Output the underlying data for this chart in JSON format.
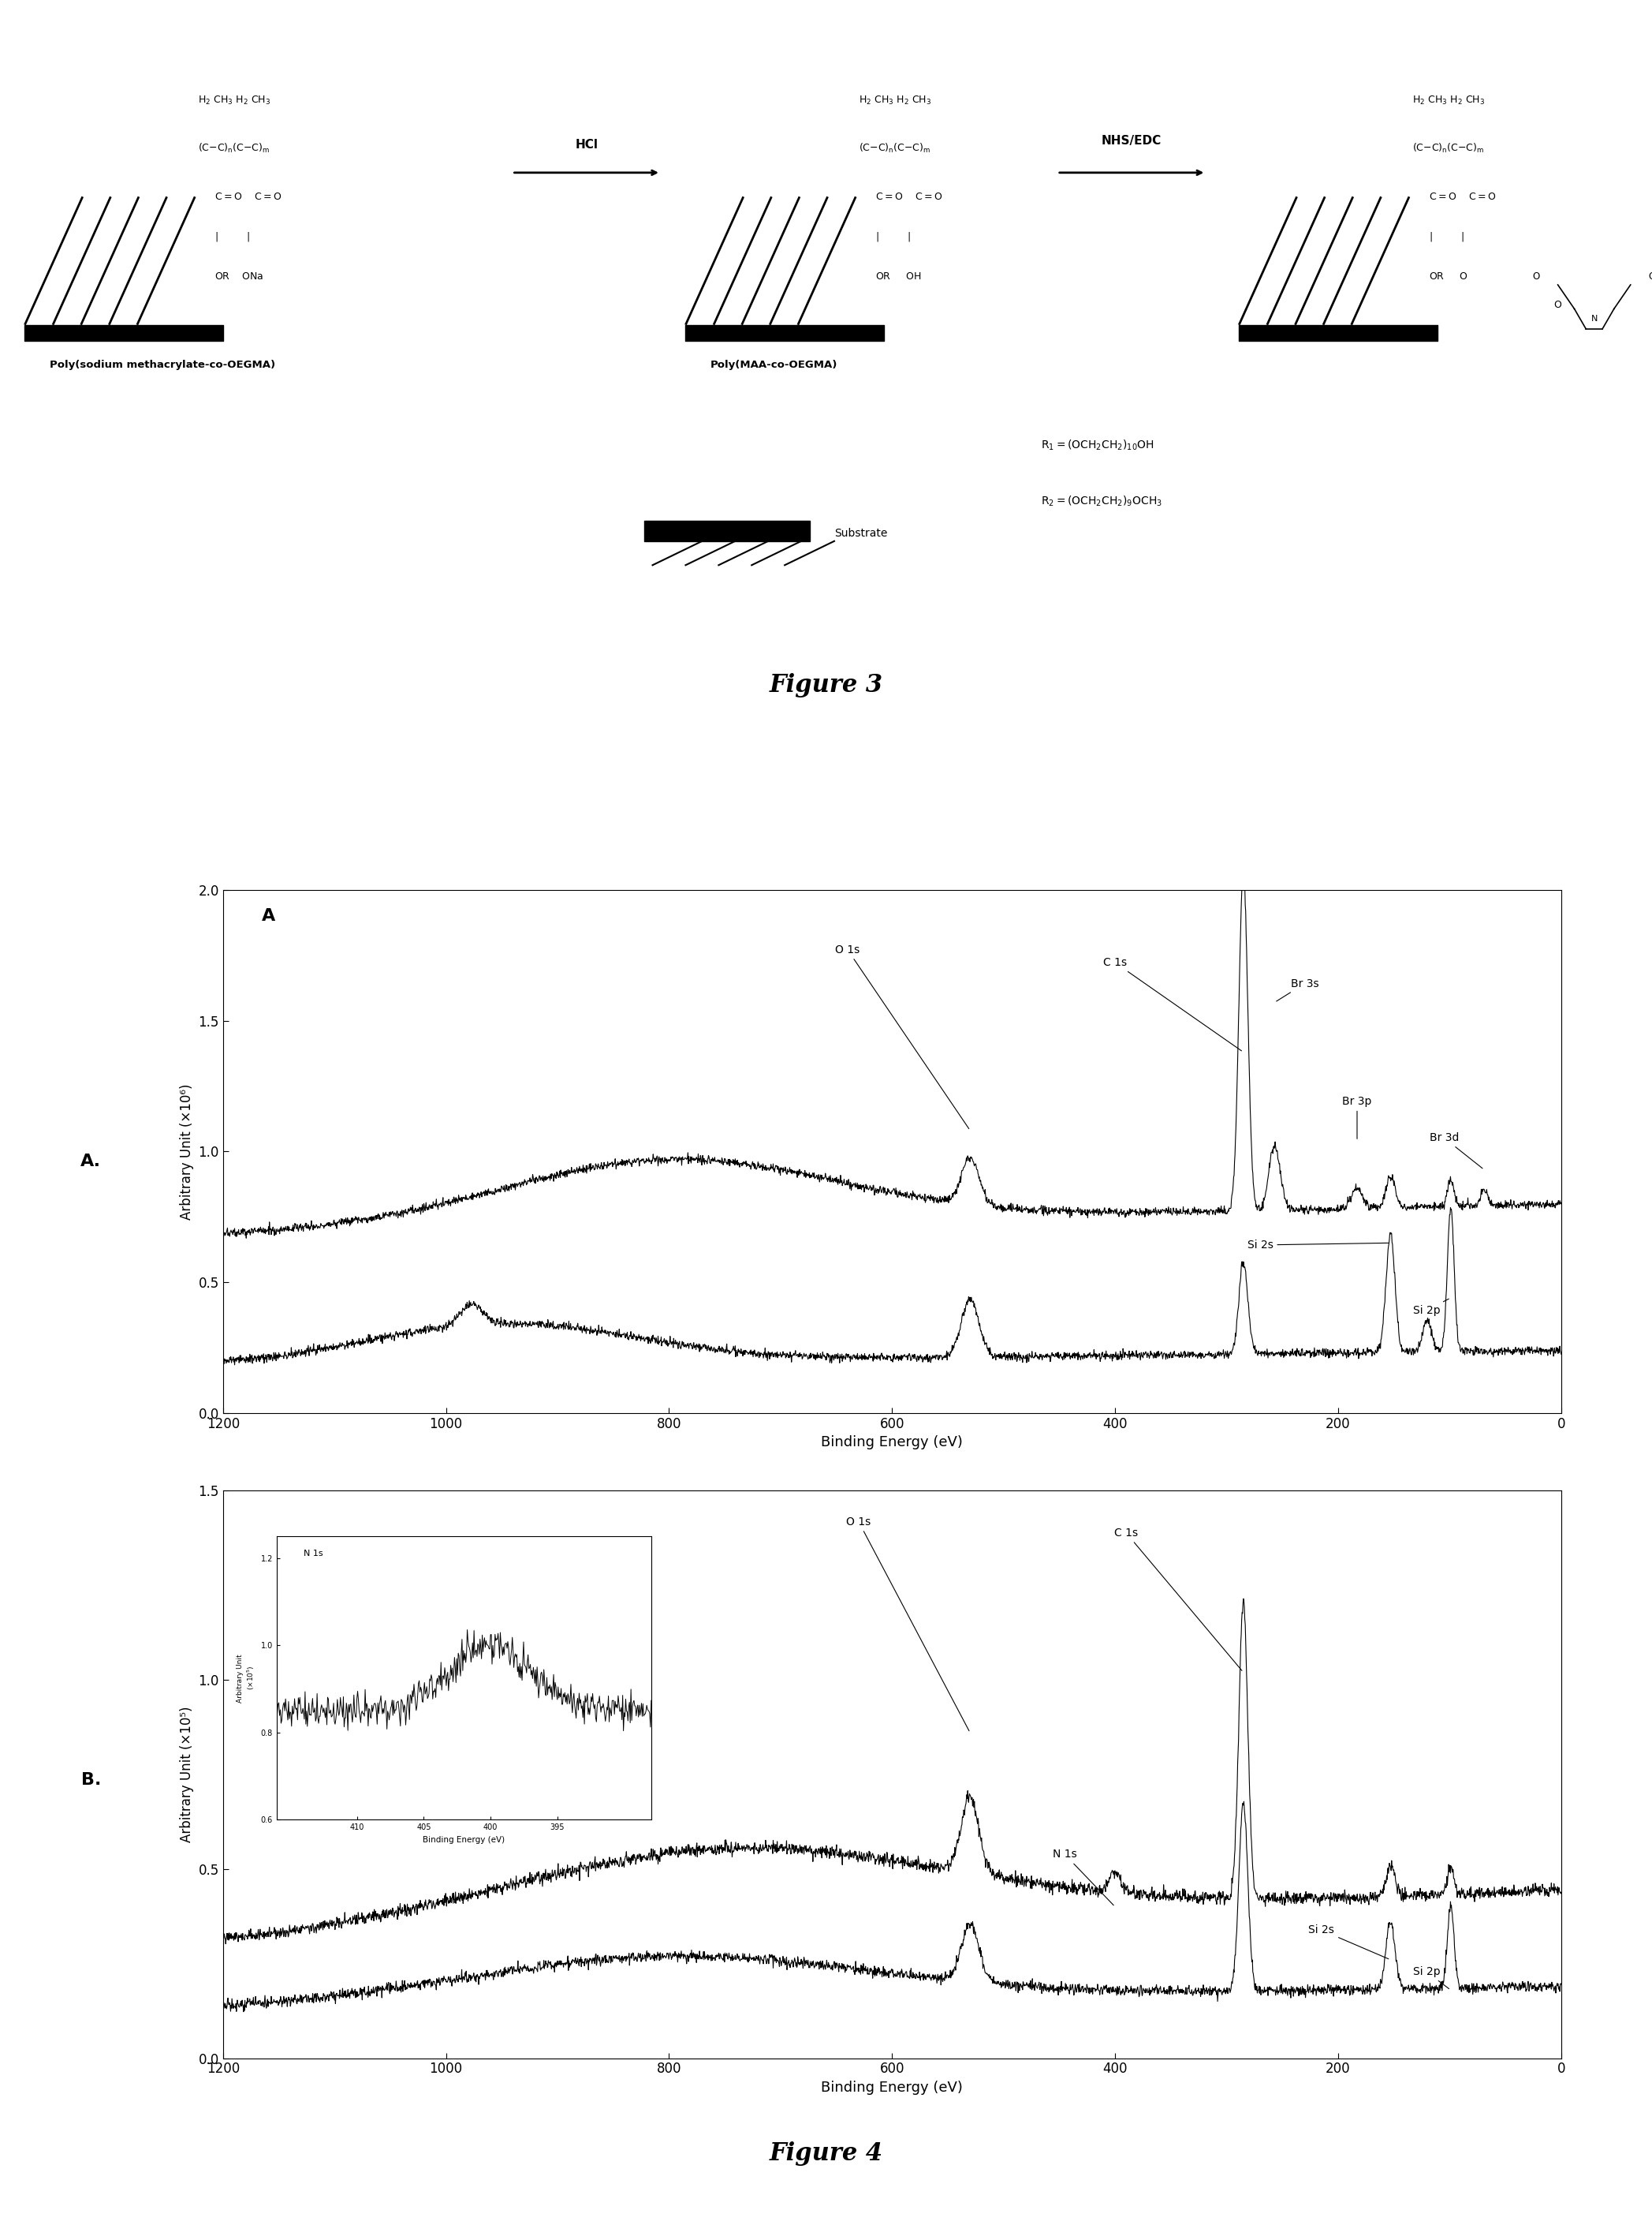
{
  "fig3_title": "Figure 3",
  "fig4_title": "Figure 4",
  "ylabel_A": "Arbitrary Unit (×10⁶)",
  "ylabel_B": "Arbitrary Unit (×10⁵)",
  "xlabel": "Binding Energy (eV)",
  "xlim": [
    1200,
    0
  ],
  "ylim_A": [
    0.0,
    2.0
  ],
  "ylim_B": [
    0.0,
    1.5
  ],
  "yticks_A": [
    0.0,
    0.5,
    1.0,
    1.5,
    2.0
  ],
  "yticks_B": [
    0.0,
    0.5,
    1.0,
    1.5
  ],
  "xticks": [
    0,
    200,
    400,
    600,
    800,
    1000,
    1200
  ],
  "bg_color": "#ffffff",
  "line_color": "#000000"
}
